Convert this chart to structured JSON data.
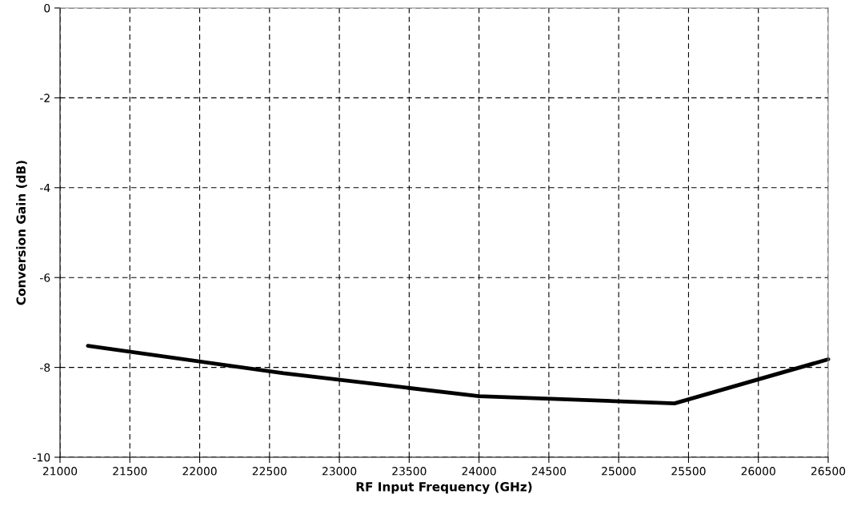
{
  "chart_data": {
    "type": "line",
    "xlabel": "RF Input Frequency (GHz)",
    "ylabel": "Conversion Gain (dB)",
    "x": [
      21200,
      22600,
      24000,
      25400,
      26500
    ],
    "series": [
      {
        "color": "#000000",
        "values": [
          -7.52,
          -8.13,
          -8.64,
          -8.8,
          -7.82
        ]
      }
    ],
    "xlim": [
      21000,
      26500
    ],
    "xticks": [
      21000,
      21500,
      22000,
      22500,
      23000,
      23500,
      24000,
      24500,
      25000,
      25500,
      26000,
      26500
    ],
    "ylim": [
      -10,
      0
    ],
    "yticks": [
      -10,
      -8,
      -6,
      -4,
      -2,
      0
    ],
    "grid": true,
    "line_style": "solid",
    "marker": "none"
  }
}
